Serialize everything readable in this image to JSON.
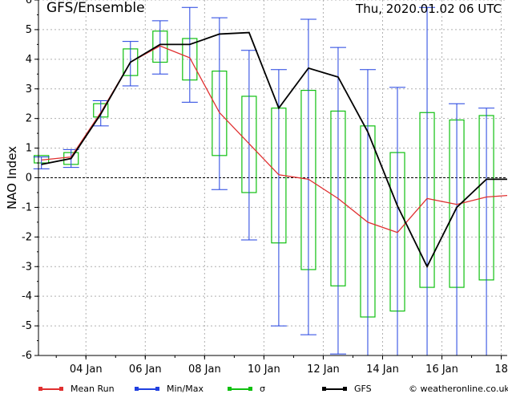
{
  "header": {
    "title": "GFS/Ensemble",
    "datetime": "Thu, 2020.01.02   06 UTC"
  },
  "credit": "© weatheronline.co.uk",
  "legend": [
    {
      "label": "Mean Run",
      "color": "#e03030"
    },
    {
      "label": "Min/Max",
      "color": "#2040e0"
    },
    {
      "label": "σ",
      "color": "#10c010"
    },
    {
      "label": "GFS",
      "color": "#000000"
    }
  ],
  "chart_data": {
    "type": "line",
    "ylabel": "NAO Index",
    "ylim": [
      -6,
      6
    ],
    "yticks": [
      -6,
      -5,
      -4,
      -3,
      -2,
      -1,
      0,
      1,
      2,
      3,
      4,
      5,
      6
    ],
    "xlim": [
      2.4,
      18.2
    ],
    "xticks": [
      {
        "x": 4,
        "label": "04 Jan"
      },
      {
        "x": 6,
        "label": "06 Jan"
      },
      {
        "x": 8,
        "label": "08 Jan"
      },
      {
        "x": 10,
        "label": "10 Jan"
      },
      {
        "x": 12,
        "label": "12 Jan"
      },
      {
        "x": 14,
        "label": "14 Jan"
      },
      {
        "x": 16,
        "label": "16 Jan"
      },
      {
        "x": 18,
        "label": "18"
      }
    ],
    "grid": true,
    "zero_line": true,
    "mean_run": {
      "x": [
        2.5,
        3.5,
        4.5,
        5.5,
        6.5,
        7.5,
        8.5,
        9.5,
        10.5,
        11.5,
        12.5,
        13.5,
        14.5,
        15.5,
        16.5,
        17.5,
        18.2
      ],
      "y": [
        0.6,
        0.7,
        2.2,
        3.9,
        4.45,
        4.05,
        2.2,
        1.15,
        0.1,
        -0.05,
        -0.7,
        -1.5,
        -1.85,
        -0.7,
        -0.9,
        -0.65,
        -0.6
      ]
    },
    "gfs": {
      "x": [
        2.5,
        3.5,
        4.5,
        5.5,
        6.5,
        7.5,
        8.5,
        9.5,
        10.5,
        11.5,
        12.5,
        13.5,
        14.5,
        15.5,
        16.5,
        17.5,
        18.2
      ],
      "y": [
        0.45,
        0.65,
        2.15,
        3.9,
        4.5,
        4.5,
        4.85,
        4.9,
        2.35,
        3.7,
        3.4,
        1.55,
        -0.95,
        -3.0,
        -1.0,
        -0.05,
        -0.05
      ]
    },
    "min_max": [
      {
        "x": 2.5,
        "min": 0.3,
        "max": 0.7
      },
      {
        "x": 3.5,
        "min": 0.35,
        "max": 0.95
      },
      {
        "x": 4.5,
        "min": 1.75,
        "max": 2.6
      },
      {
        "x": 5.5,
        "min": 3.1,
        "max": 4.6
      },
      {
        "x": 6.5,
        "min": 3.5,
        "max": 5.3
      },
      {
        "x": 7.5,
        "min": 2.55,
        "max": 5.75
      },
      {
        "x": 8.5,
        "min": -0.4,
        "max": 5.4
      },
      {
        "x": 9.5,
        "min": -2.1,
        "max": 4.3
      },
      {
        "x": 10.5,
        "min": -5.0,
        "max": 3.65
      },
      {
        "x": 11.5,
        "min": -5.3,
        "max": 5.35
      },
      {
        "x": 12.5,
        "min": -5.95,
        "max": 4.4
      },
      {
        "x": 13.5,
        "min": -6.0,
        "max": 3.65
      },
      {
        "x": 14.5,
        "min": -6.0,
        "max": 3.05
      },
      {
        "x": 15.5,
        "min": -6.0,
        "max": 5.75
      },
      {
        "x": 16.5,
        "min": -6.0,
        "max": 2.5
      },
      {
        "x": 17.5,
        "min": -6.0,
        "max": 2.35
      }
    ],
    "sigma": [
      {
        "x": 2.5,
        "low": 0.5,
        "high": 0.75
      },
      {
        "x": 3.5,
        "low": 0.45,
        "high": 0.85
      },
      {
        "x": 4.5,
        "low": 2.05,
        "high": 2.5
      },
      {
        "x": 5.5,
        "low": 3.45,
        "high": 4.35
      },
      {
        "x": 6.5,
        "low": 3.9,
        "high": 4.95
      },
      {
        "x": 7.5,
        "low": 3.3,
        "high": 4.7
      },
      {
        "x": 8.5,
        "low": 0.75,
        "high": 3.6
      },
      {
        "x": 9.5,
        "low": -0.5,
        "high": 2.75
      },
      {
        "x": 10.5,
        "low": -2.2,
        "high": 2.35
      },
      {
        "x": 11.5,
        "low": -3.1,
        "high": 2.95
      },
      {
        "x": 12.5,
        "low": -3.65,
        "high": 2.25
      },
      {
        "x": 13.5,
        "low": -4.7,
        "high": 1.75
      },
      {
        "x": 14.5,
        "low": -4.5,
        "high": 0.85
      },
      {
        "x": 15.5,
        "low": -3.7,
        "high": 2.2
      },
      {
        "x": 16.5,
        "low": -3.7,
        "high": 1.95
      },
      {
        "x": 17.5,
        "low": -3.45,
        "high": 2.1
      }
    ]
  }
}
